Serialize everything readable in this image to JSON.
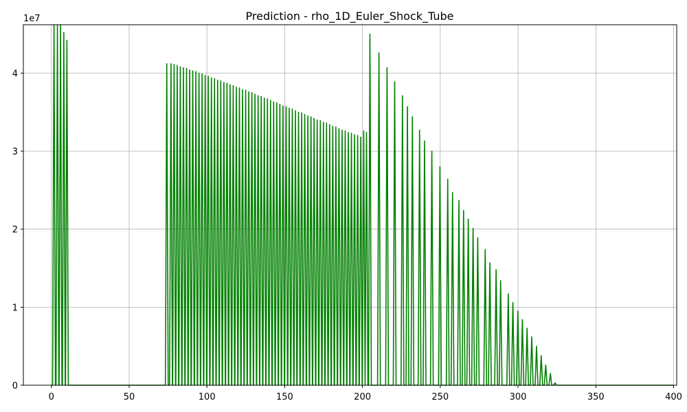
{
  "chart_data": {
    "type": "line",
    "title": "Prediction - rho_1D_Euler_Shock_Tube",
    "xlabel": "",
    "ylabel": "",
    "y_scale_label": "1e7",
    "x_ticks": [
      0,
      50,
      100,
      150,
      200,
      250,
      300,
      350,
      400
    ],
    "y_ticks": [
      0,
      1,
      2,
      3,
      4
    ],
    "xlim": [
      -18,
      402
    ],
    "ylim": [
      0,
      4.62
    ],
    "grid": true,
    "series": [
      {
        "color": "#008000",
        "baseline": 0,
        "x_range": [
          0,
          400
        ],
        "peaks": [
          [
            1.7,
            4.62
          ],
          [
            3.9,
            4.62
          ],
          [
            5.9,
            4.62
          ],
          [
            8.0,
            4.52
          ],
          [
            10.0,
            4.42
          ],
          [
            74.2,
            4.12
          ],
          [
            76.9,
            4.12
          ],
          [
            78.9,
            4.11
          ],
          [
            80.9,
            4.1
          ],
          [
            82.9,
            4.08
          ],
          [
            84.9,
            4.07
          ],
          [
            86.9,
            4.06
          ],
          [
            88.9,
            4.04
          ],
          [
            90.9,
            4.03
          ],
          [
            92.9,
            4.02
          ],
          [
            94.9,
            4.0
          ],
          [
            96.9,
            3.99
          ],
          [
            98.9,
            3.97
          ],
          [
            100.9,
            3.96
          ],
          [
            102.9,
            3.94
          ],
          [
            104.9,
            3.93
          ],
          [
            106.9,
            3.91
          ],
          [
            108.9,
            3.9
          ],
          [
            110.9,
            3.88
          ],
          [
            112.9,
            3.87
          ],
          [
            114.9,
            3.85
          ],
          [
            116.9,
            3.84
          ],
          [
            118.9,
            3.82
          ],
          [
            120.9,
            3.81
          ],
          [
            122.9,
            3.79
          ],
          [
            124.9,
            3.78
          ],
          [
            126.9,
            3.76
          ],
          [
            128.9,
            3.75
          ],
          [
            130.9,
            3.73
          ],
          [
            132.9,
            3.71
          ],
          [
            134.9,
            3.7
          ],
          [
            136.9,
            3.68
          ],
          [
            138.9,
            3.67
          ],
          [
            140.9,
            3.65
          ],
          [
            142.9,
            3.63
          ],
          [
            144.9,
            3.62
          ],
          [
            146.9,
            3.6
          ],
          [
            148.9,
            3.58
          ],
          [
            150.9,
            3.57
          ],
          [
            152.9,
            3.55
          ],
          [
            154.9,
            3.54
          ],
          [
            156.9,
            3.52
          ],
          [
            158.9,
            3.5
          ],
          [
            160.9,
            3.49
          ],
          [
            162.9,
            3.47
          ],
          [
            164.9,
            3.45
          ],
          [
            166.9,
            3.44
          ],
          [
            168.9,
            3.42
          ],
          [
            170.9,
            3.4
          ],
          [
            172.9,
            3.39
          ],
          [
            174.9,
            3.37
          ],
          [
            176.9,
            3.36
          ],
          [
            178.9,
            3.34
          ],
          [
            180.9,
            3.32
          ],
          [
            182.9,
            3.31
          ],
          [
            184.9,
            3.29
          ],
          [
            186.9,
            3.27
          ],
          [
            188.9,
            3.26
          ],
          [
            190.9,
            3.24
          ],
          [
            192.9,
            3.23
          ],
          [
            194.9,
            3.21
          ],
          [
            196.9,
            3.2
          ],
          [
            198.9,
            3.18
          ],
          [
            200.8,
            3.26
          ],
          [
            202.6,
            3.24
          ],
          [
            204.8,
            4.5
          ],
          [
            210.6,
            4.26
          ],
          [
            215.8,
            4.07
          ],
          [
            220.7,
            3.89
          ],
          [
            225.7,
            3.71
          ],
          [
            228.9,
            3.57
          ],
          [
            232.1,
            3.44
          ],
          [
            236.7,
            3.27
          ],
          [
            239.9,
            3.13
          ],
          [
            244.6,
            3.0
          ],
          [
            249.8,
            2.8
          ],
          [
            254.8,
            2.64
          ],
          [
            257.9,
            2.47
          ],
          [
            262.0,
            2.37
          ],
          [
            265.0,
            2.24
          ],
          [
            268.0,
            2.13
          ],
          [
            271.1,
            2.01
          ],
          [
            274.1,
            1.89
          ],
          [
            278.9,
            1.74
          ],
          [
            281.9,
            1.57
          ],
          [
            285.9,
            1.48
          ],
          [
            288.8,
            1.34
          ],
          [
            293.7,
            1.17
          ],
          [
            296.7,
            1.06
          ],
          [
            299.9,
            0.95
          ],
          [
            302.8,
            0.84
          ],
          [
            305.8,
            0.73
          ],
          [
            308.8,
            0.62
          ],
          [
            311.9,
            0.5
          ],
          [
            314.9,
            0.38
          ],
          [
            317.8,
            0.26
          ],
          [
            320.8,
            0.15
          ],
          [
            323.8,
            0.03
          ]
        ]
      }
    ]
  }
}
